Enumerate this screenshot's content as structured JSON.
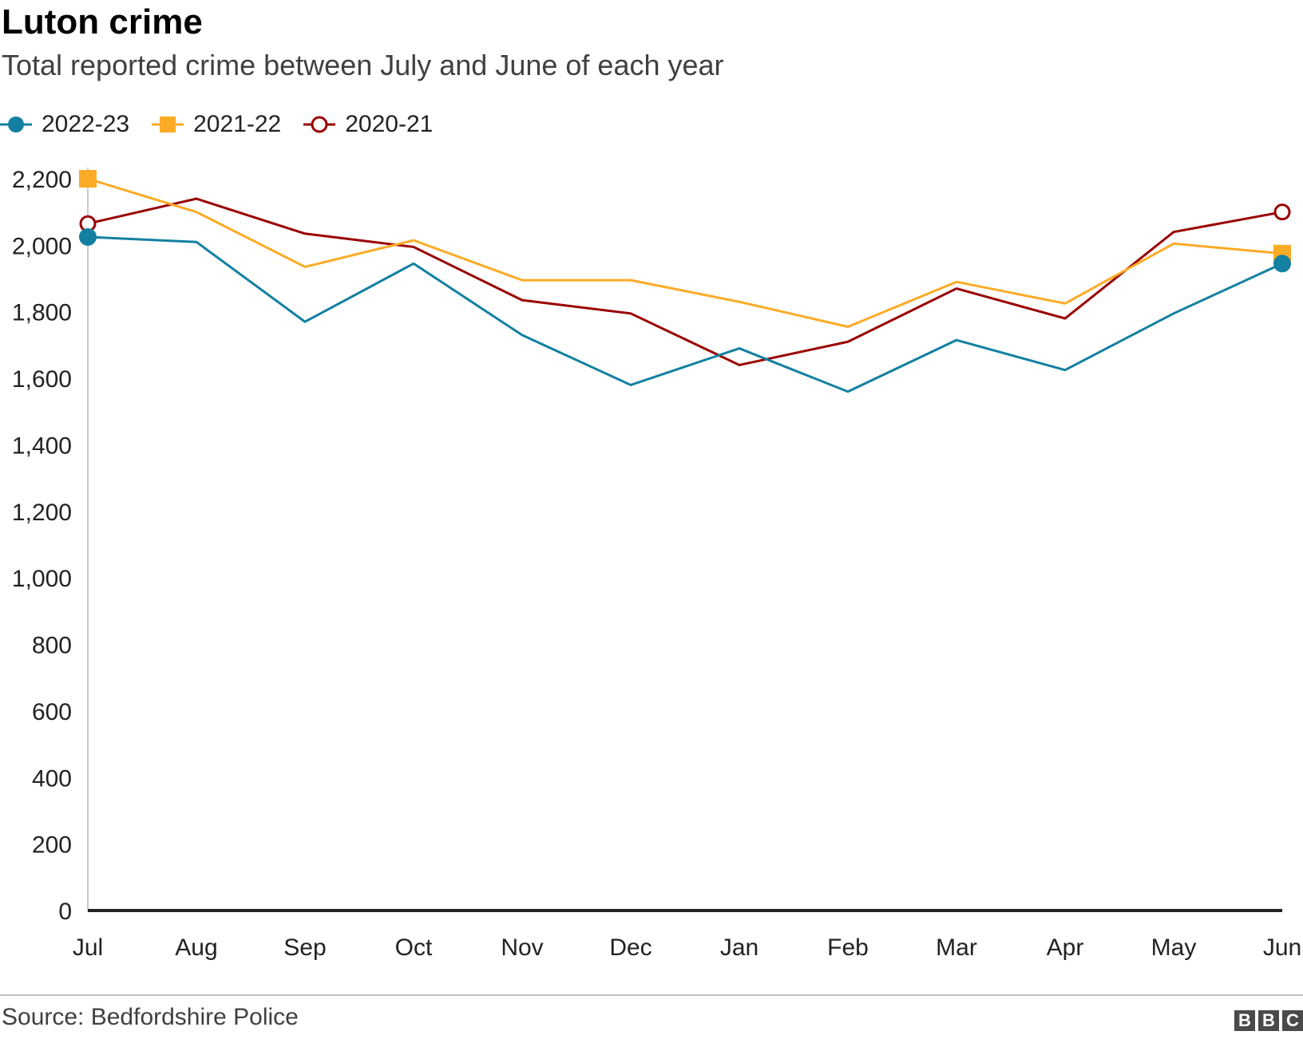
{
  "title": "Luton crime",
  "subtitle": "Total reported crime between July and June of each year",
  "source": "Source: Bedfordshire Police",
  "logo": [
    "B",
    "B",
    "C"
  ],
  "chart_data": {
    "type": "line",
    "categories": [
      "Jul",
      "Aug",
      "Sep",
      "Oct",
      "Nov",
      "Dec",
      "Jan",
      "Feb",
      "Mar",
      "Apr",
      "May",
      "Jun"
    ],
    "series": [
      {
        "name": "2022-23",
        "color": "#1380a1",
        "marker": "filled-circle",
        "values": [
          2025,
          2010,
          1770,
          1945,
          1730,
          1580,
          1690,
          1560,
          1715,
          1625,
          1795,
          1945
        ]
      },
      {
        "name": "2021-22",
        "color": "#fcab26",
        "marker": "filled-square",
        "values": [
          2200,
          2100,
          1935,
          2015,
          1895,
          1895,
          1830,
          1755,
          1890,
          1825,
          2005,
          1975
        ]
      },
      {
        "name": "2020-21",
        "color": "#990000",
        "marker": "open-circle",
        "values": [
          2065,
          2140,
          2035,
          1995,
          1835,
          1795,
          1640,
          1710,
          1870,
          1780,
          2040,
          2100
        ]
      }
    ],
    "ylim": [
      0,
      2200
    ],
    "yticks": [
      0,
      200,
      400,
      600,
      800,
      1000,
      1200,
      1400,
      1600,
      1800,
      2000,
      2200
    ],
    "ytick_labels": [
      "0",
      "200",
      "400",
      "600",
      "800",
      "1,000",
      "1,200",
      "1,400",
      "1,600",
      "1,800",
      "2,000",
      "2,200"
    ],
    "grid": false,
    "legend_position": "top-left",
    "xlabel": "",
    "ylabel": ""
  }
}
